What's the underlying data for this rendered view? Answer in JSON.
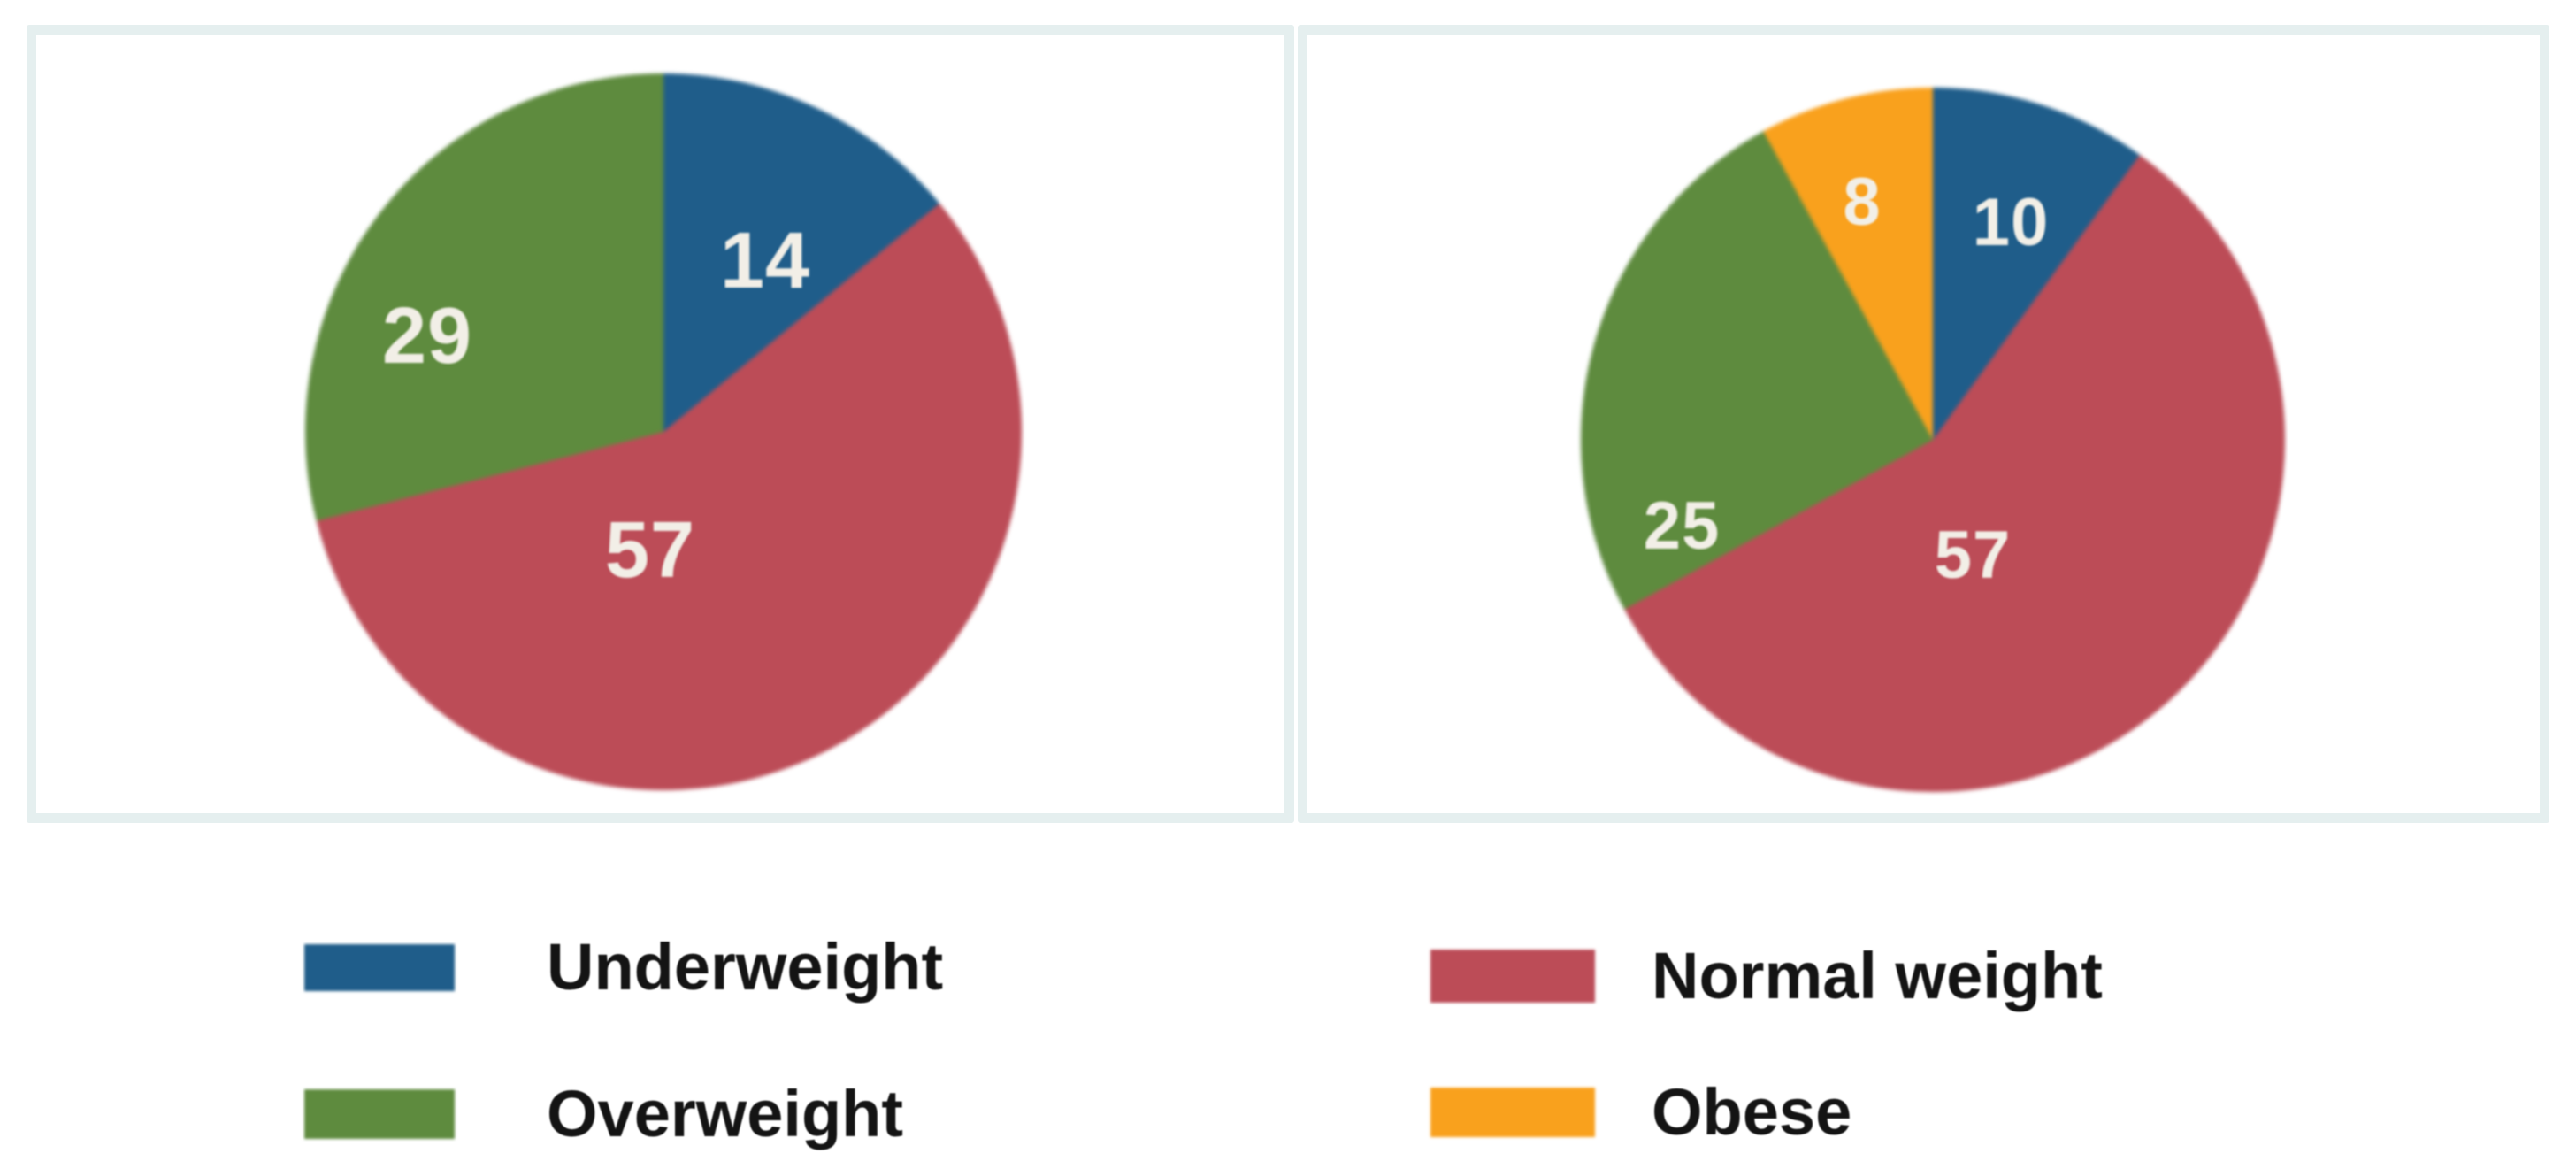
{
  "page": {
    "background": "#ffffff",
    "panel_border_color": "#e5efef",
    "panel_fill": "#ffffff",
    "value_label_color": "#f2efe7",
    "legend_text_color": "#141414"
  },
  "chart_data": [
    {
      "type": "pie",
      "title": "",
      "start_angle": "12-oclock",
      "direction": "clockwise",
      "total": 100,
      "slices": [
        {
          "label": "Underweight",
          "value": 14,
          "color": "#1f5d8a"
        },
        {
          "label": "Normal weight",
          "value": 57,
          "color": "#bc4c57"
        },
        {
          "label": "Overweight",
          "value": 29,
          "color": "#5e8b3e"
        }
      ]
    },
    {
      "type": "pie",
      "title": "",
      "start_angle": "12-oclock",
      "direction": "clockwise",
      "total": 100,
      "slices": [
        {
          "label": "Underweight",
          "value": 10,
          "color": "#1f5d8a"
        },
        {
          "label": "Normal weight",
          "value": 57,
          "color": "#bc4c57"
        },
        {
          "label": "Overweight",
          "value": 25,
          "color": "#5e8b3e"
        },
        {
          "label": "Obese",
          "value": 8,
          "color": "#f9a11d"
        }
      ]
    }
  ],
  "legend": {
    "items": [
      {
        "label": "Underweight",
        "color": "#1f5d8a"
      },
      {
        "label": "Normal weight",
        "color": "#bc4c57"
      },
      {
        "label": "Overweight",
        "color": "#5e8b3e"
      },
      {
        "label": "Obese",
        "color": "#f9a11d"
      }
    ]
  }
}
